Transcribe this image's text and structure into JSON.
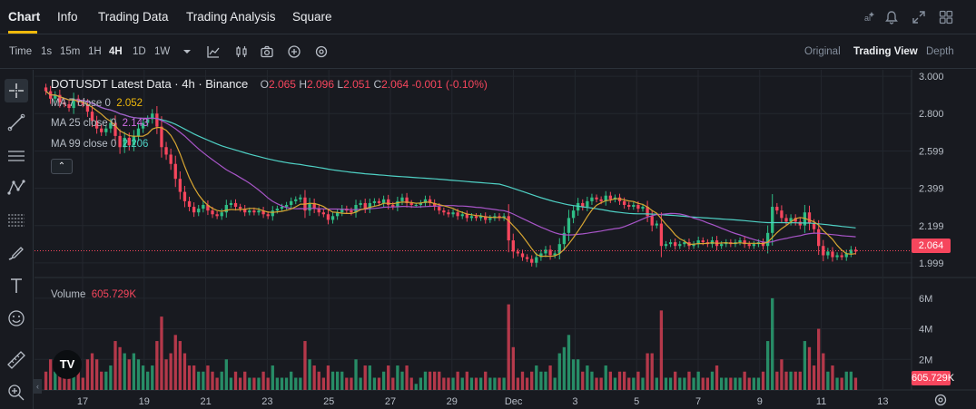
{
  "nav": {
    "tabs": [
      "Chart",
      "Info",
      "Trading Data",
      "Trading Analysis",
      "Square"
    ],
    "icons": [
      "ai-icon",
      "bell-icon",
      "expand-icon",
      "grid-icon"
    ]
  },
  "toolbar": {
    "time_label": "Time",
    "intervals": [
      "1s",
      "15m",
      "1H",
      "4H",
      "1D",
      "1W"
    ],
    "active_interval": "4H",
    "views": [
      "Original",
      "Trading View",
      "Depth"
    ],
    "active_view": "Trading View"
  },
  "legend": {
    "symbol": "DOTUSDT Latest Data · 4h · Binance",
    "o_label": "O",
    "o_value": "2.065",
    "h_label": "H",
    "h_value": "2.096",
    "l_label": "L",
    "l_value": "2.051",
    "c_label": "C",
    "c_value": "2.064",
    "change": "-0.001 (-0.10%)"
  },
  "ma": [
    {
      "label": "MA 7 close 0",
      "value": "2.052",
      "color": "#f0b90b"
    },
    {
      "label": "MA 25 close 0",
      "value": "2.143",
      "color": "#d26ee6"
    },
    {
      "label": "MA 99 close 0",
      "value": "2.206",
      "color": "#4fd1c5"
    }
  ],
  "volume": {
    "label": "Volume",
    "value": "605.729K"
  },
  "price_axis": {
    "ticks": [
      "3.000",
      "2.800",
      "2.599",
      "2.399",
      "2.199",
      "1.999"
    ],
    "current": "2.064"
  },
  "volume_axis": {
    "ticks": [
      "6M",
      "4M",
      "2M"
    ],
    "current": "605.729K"
  },
  "time_axis": {
    "ticks": [
      "17",
      "19",
      "21",
      "23",
      "25",
      "27",
      "29",
      "Dec",
      "3",
      "5",
      "7",
      "9",
      "11",
      "13"
    ]
  },
  "colors": {
    "up": "#2ebd85",
    "down": "#f6465d",
    "grid": "#23272e",
    "bg": "#181a20"
  },
  "tv_logo": "TV",
  "chart_data": {
    "type": "candlestick",
    "title": "DOTUSDT Latest Data · 4h · Binance",
    "ylim": [
      1.95,
      3.02
    ],
    "close": [
      2.92,
      2.88,
      2.9,
      2.86,
      2.85,
      2.83,
      2.88,
      2.86,
      2.85,
      2.81,
      2.76,
      2.72,
      2.7,
      2.72,
      2.75,
      2.68,
      2.62,
      2.67,
      2.63,
      2.68,
      2.72,
      2.75,
      2.77,
      2.8,
      2.73,
      2.62,
      2.58,
      2.53,
      2.45,
      2.38,
      2.33,
      2.3,
      2.27,
      2.29,
      2.31,
      2.28,
      2.26,
      2.25,
      2.27,
      2.31,
      2.32,
      2.3,
      2.29,
      2.27,
      2.28,
      2.27,
      2.28,
      2.26,
      2.25,
      2.28,
      2.29,
      2.3,
      2.31,
      2.33,
      2.34,
      2.35,
      2.28,
      2.32,
      2.29,
      2.27,
      2.26,
      2.23,
      2.25,
      2.27,
      2.29,
      2.28,
      2.27,
      2.31,
      2.32,
      2.29,
      2.32,
      2.33,
      2.32,
      2.34,
      2.31,
      2.3,
      2.33,
      2.35,
      2.32,
      2.31,
      2.31,
      2.32,
      2.34,
      2.32,
      2.3,
      2.28,
      2.27,
      2.26,
      2.27,
      2.25,
      2.26,
      2.24,
      2.25,
      2.24,
      2.25,
      2.23,
      2.24,
      2.25,
      2.24,
      2.25,
      2.12,
      2.06,
      2.05,
      2.03,
      2.02,
      2.0,
      2.03,
      2.05,
      2.07,
      2.04,
      2.05,
      2.1,
      2.16,
      2.24,
      2.28,
      2.32,
      2.3,
      2.33,
      2.35,
      2.34,
      2.33,
      2.36,
      2.34,
      2.35,
      2.33,
      2.31,
      2.3,
      2.31,
      2.29,
      2.3,
      2.25,
      2.2,
      2.21,
      2.09,
      2.1,
      2.11,
      2.09,
      2.1,
      2.11,
      2.09,
      2.1,
      2.12,
      2.11,
      2.1,
      2.12,
      2.09,
      2.1,
      2.11,
      2.1,
      2.11,
      2.12,
      2.1,
      2.09,
      2.1,
      2.11,
      2.09,
      2.16,
      2.3,
      2.28,
      2.24,
      2.22,
      2.24,
      2.22,
      2.2,
      2.27,
      2.21,
      2.18,
      2.09,
      2.04,
      2.06,
      2.03,
      2.04,
      2.03,
      2.05,
      2.07,
      2.06
    ],
    "ma7_last": 2.052,
    "ma25_last": 2.143,
    "ma99_last": 2.206
  }
}
